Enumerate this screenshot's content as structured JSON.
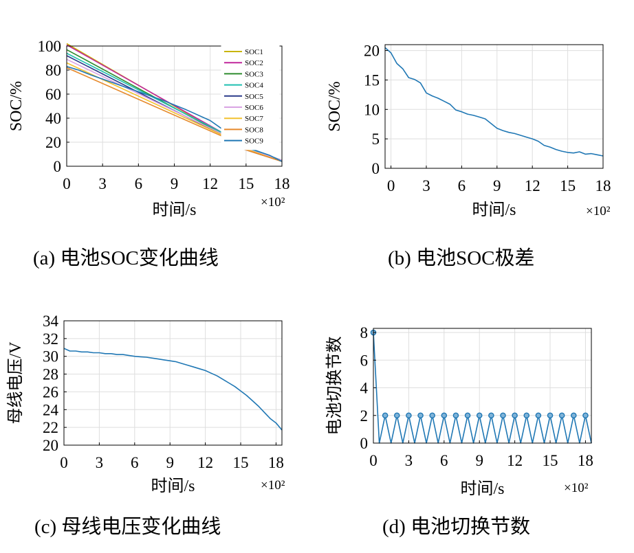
{
  "chart_data": [
    {
      "id": "a",
      "type": "line",
      "caption": "(a) 电池SOC变化曲线",
      "xlabel": "时间/s",
      "ylabel": "SOC/%",
      "x_multiplier": "×10²",
      "xlim": [
        0,
        18
      ],
      "ylim": [
        0,
        100
      ],
      "xticks": [
        0,
        3,
        6,
        9,
        12,
        15,
        18
      ],
      "yticks": [
        0,
        20,
        40,
        60,
        80,
        100
      ],
      "grid": true,
      "legend_position": "top-right",
      "series": [
        {
          "name": "SOC1",
          "color": "#c8b400",
          "x": [
            0,
            13,
            13.3,
            18
          ],
          "y": [
            102,
            27,
            20,
            5
          ]
        },
        {
          "name": "SOC2",
          "color": "#c0279c",
          "x": [
            0,
            13,
            13.3,
            18
          ],
          "y": [
            101,
            28,
            21,
            5
          ]
        },
        {
          "name": "SOC3",
          "color": "#2e8b2e",
          "x": [
            0,
            13,
            13.3,
            18
          ],
          "y": [
            97,
            27,
            20,
            5
          ]
        },
        {
          "name": "SOC4",
          "color": "#1ebfb0",
          "x": [
            0,
            13,
            13.3,
            18
          ],
          "y": [
            94,
            28,
            21,
            5
          ]
        },
        {
          "name": "SOC5",
          "color": "#2a3a8a",
          "x": [
            0,
            13,
            13.3,
            18
          ],
          "y": [
            92,
            26,
            19,
            4
          ]
        },
        {
          "name": "SOC6",
          "color": "#d9a3e3",
          "x": [
            0,
            13,
            13.3,
            18
          ],
          "y": [
            89,
            27,
            20,
            5
          ]
        },
        {
          "name": "SOC7",
          "color": "#f2c12e",
          "x": [
            0,
            13,
            13.3,
            18
          ],
          "y": [
            86,
            26,
            20,
            4
          ]
        },
        {
          "name": "SOC8",
          "color": "#e6892a",
          "x": [
            0,
            13,
            13.3,
            18
          ],
          "y": [
            82,
            25,
            19,
            4
          ]
        },
        {
          "name": "SOC9",
          "color": "#1f77b4",
          "x": [
            0,
            1,
            2,
            4,
            6,
            8,
            10,
            12,
            13,
            13.3,
            15,
            17,
            18
          ],
          "y": [
            83,
            80,
            76,
            69,
            62,
            55,
            47,
            38,
            31,
            21,
            16,
            9,
            4
          ]
        }
      ]
    },
    {
      "id": "b",
      "type": "line",
      "caption": "(b) 电池SOC极差",
      "xlabel": "时间/s",
      "ylabel": "SOC/%",
      "x_multiplier": "×10²",
      "xlim": [
        -0.5,
        18
      ],
      "ylim": [
        0,
        21
      ],
      "xticks": [
        0,
        3,
        6,
        9,
        12,
        15,
        18
      ],
      "yticks": [
        0,
        5,
        10,
        15,
        20
      ],
      "grid": true,
      "series": [
        {
          "color": "#1f77b4",
          "x": [
            -0.5,
            0,
            0.5,
            1,
            1.5,
            2,
            2.5,
            3,
            3.5,
            4,
            4.5,
            5,
            5.5,
            6,
            6.5,
            7,
            7.5,
            8,
            8.5,
            9,
            9.5,
            10,
            10.5,
            11,
            11.5,
            12,
            12.5,
            13,
            13.5,
            14,
            14.5,
            15,
            15.5,
            16,
            16.5,
            17,
            17.5,
            18
          ],
          "y": [
            20.5,
            19.6,
            17.8,
            16.9,
            15.4,
            15.1,
            14.5,
            12.8,
            12.3,
            11.9,
            11.4,
            10.9,
            9.9,
            9.6,
            9.2,
            9.0,
            8.7,
            8.4,
            7.6,
            6.8,
            6.4,
            6.1,
            5.9,
            5.6,
            5.3,
            5.0,
            4.6,
            3.9,
            3.6,
            3.2,
            2.9,
            2.7,
            2.6,
            2.8,
            2.4,
            2.5,
            2.3,
            2.1
          ]
        }
      ]
    },
    {
      "id": "c",
      "type": "line",
      "caption": "(c) 母线电压变化曲线",
      "xlabel": "时间/s",
      "ylabel": "母线电压/V",
      "x_multiplier": "×10²",
      "xlim": [
        0,
        18.5
      ],
      "ylim": [
        20,
        34
      ],
      "xticks": [
        0,
        3,
        6,
        9,
        12,
        15,
        18
      ],
      "yticks": [
        20,
        22,
        24,
        26,
        28,
        30,
        32,
        34
      ],
      "grid": true,
      "series": [
        {
          "color": "#1f77b4",
          "x": [
            0,
            0.5,
            1,
            1.5,
            2,
            2.5,
            3,
            3.5,
            4,
            4.5,
            5,
            5.5,
            6,
            6.5,
            7,
            7.5,
            8,
            8.5,
            9,
            9.5,
            10,
            10.5,
            11,
            11.5,
            12,
            12.5,
            13,
            13.5,
            14,
            14.5,
            15,
            15.5,
            16,
            16.5,
            17,
            17.5,
            18,
            18.5
          ],
          "y": [
            30.9,
            30.6,
            30.6,
            30.5,
            30.5,
            30.4,
            30.4,
            30.3,
            30.3,
            30.2,
            30.2,
            30.1,
            30.0,
            29.95,
            29.9,
            29.8,
            29.7,
            29.6,
            29.5,
            29.4,
            29.2,
            29.0,
            28.8,
            28.6,
            28.4,
            28.1,
            27.8,
            27.4,
            27.0,
            26.6,
            26.1,
            25.6,
            25.0,
            24.4,
            23.7,
            23.0,
            22.5,
            21.7
          ]
        }
      ]
    },
    {
      "id": "d",
      "type": "line",
      "caption": "(d) 电池切换节数",
      "xlabel": "时间/s",
      "ylabel": "电池切换节数",
      "x_multiplier": "×10²",
      "xlim": [
        0,
        18.5
      ],
      "ylim": [
        0,
        8.3
      ],
      "xticks": [
        0,
        3,
        6,
        9,
        12,
        15,
        18
      ],
      "yticks": [
        0,
        2,
        4,
        6,
        8
      ],
      "grid": true,
      "markers": true,
      "series": [
        {
          "color": "#1f77b4",
          "x": [
            0,
            0.5,
            1.0,
            1.5,
            2.0,
            2.5,
            3.0,
            3.5,
            4.0,
            4.5,
            5.0,
            5.5,
            6.0,
            6.5,
            7.0,
            7.5,
            8.0,
            8.5,
            9.0,
            9.5,
            10.0,
            10.5,
            11.0,
            11.5,
            12.0,
            12.5,
            13.0,
            13.5,
            14.0,
            14.5,
            15.0,
            15.5,
            16.0,
            16.5,
            17.0,
            17.5,
            18.0,
            18.5
          ],
          "y": [
            8,
            0,
            2,
            0,
            2,
            0,
            2,
            0,
            2,
            0,
            2,
            0,
            2,
            0,
            2,
            0,
            2,
            0,
            2,
            0,
            2,
            0,
            2,
            0,
            2,
            0,
            2,
            0,
            2,
            0,
            2,
            0,
            2,
            0,
            2,
            0,
            2,
            0
          ]
        }
      ]
    }
  ]
}
